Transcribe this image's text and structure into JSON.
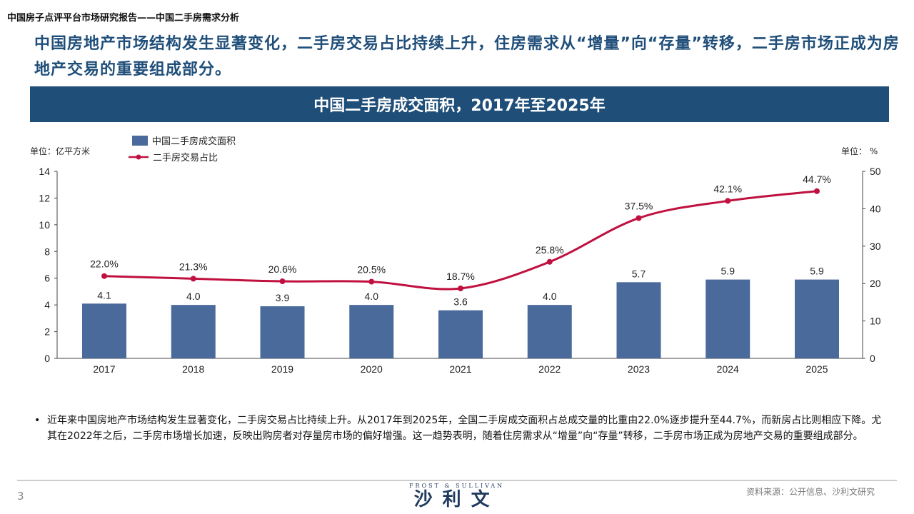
{
  "header": "中国房子点评平台市场研究报告——中国二手房需求分析",
  "headline": "中国房地产市场结构发生显著变化，二手房交易占比持续上升，住房需求从“增量”向“存量”转移，二手房市场正成为房地产交易的重要组成部分。",
  "banner": "中国二手房成交面积，2017年至2025年",
  "unit_left": "单位：亿平方米",
  "unit_right": "单位： %",
  "note": "近年来中国房地产市场结构发生显著变化，二手房交易占比持续上升。从2017年到2025年，全国二手房成交面积占总成交量的比重由22.0%逐步提升至44.7%，而新房占比则相应下降。尤其在2022年之后，二手房市场增长加速，反映出购房者对存量房市场的偏好增强。这一趋势表明，随着住房需求从“增量”向“存量”转移，二手房市场正成为房地产交易的重要组成部分。",
  "bullet": "•",
  "page_number": "3",
  "source": "资料来源：公开信息、沙利文研究",
  "logo": {
    "en": "FROST & SULLIVAN",
    "cn": "沙利文"
  },
  "colors": {
    "bar": "#4a6a9b",
    "line": "#c0103f",
    "banner": "#1f4e79"
  },
  "chart_data": {
    "type": "bar+line",
    "title": "中国二手房成交面积，2017年至2025年",
    "categories": [
      "2017",
      "2018",
      "2019",
      "2020",
      "2021",
      "2022",
      "2023",
      "2024",
      "2025"
    ],
    "series": [
      {
        "name": "中国二手房成交面积",
        "type": "bar",
        "axis": "left",
        "values": [
          4.1,
          4.0,
          3.9,
          4.0,
          3.6,
          4.0,
          5.7,
          5.9,
          5.9
        ],
        "labels": [
          "4.1",
          "4.0",
          "3.9",
          "4.0",
          "3.6",
          "4.0",
          "5.7",
          "5.9",
          "5.9"
        ]
      },
      {
        "name": "二手房交易占比",
        "type": "line",
        "axis": "right",
        "values": [
          22.0,
          21.3,
          20.6,
          20.5,
          18.7,
          25.8,
          37.5,
          42.1,
          44.7
        ],
        "labels": [
          "22.0%",
          "21.3%",
          "20.6%",
          "20.5%",
          "18.7%",
          "25.8%",
          "37.5%",
          "42.1%",
          "44.7%"
        ]
      }
    ],
    "y_left": {
      "label": "单位：亿平方米",
      "range": [
        0,
        14
      ],
      "ticks": [
        "0",
        "2",
        "4",
        "6",
        "8",
        "10",
        "12",
        "14"
      ]
    },
    "y_right": {
      "label": "单位： %",
      "range": [
        0,
        50
      ],
      "ticks": [
        "0",
        "10",
        "20",
        "30",
        "40",
        "50"
      ]
    },
    "legend": "top-left",
    "grid": false
  }
}
